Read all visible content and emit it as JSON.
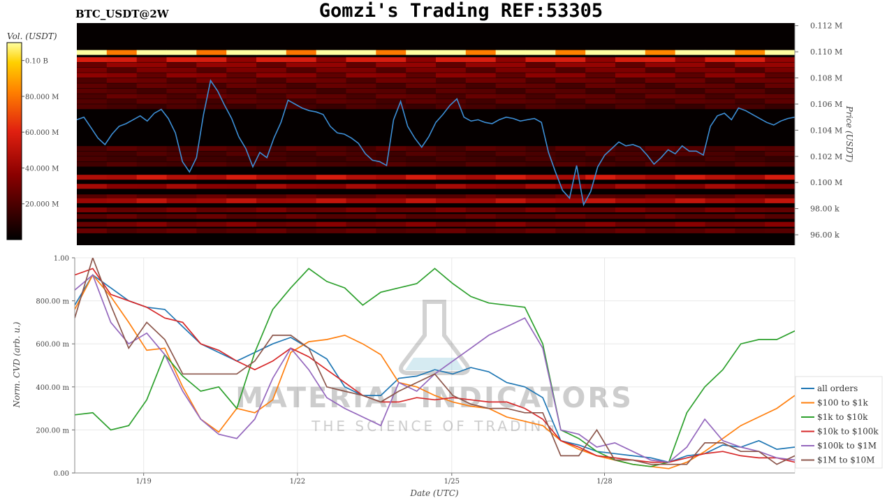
{
  "title": "Gomzi's Trading REF:53305",
  "symbol": "BTC_USDT@2W",
  "watermark": {
    "line1": "MATERIAL INDICATORS",
    "line2": "THE SCIENCE OF TRADING"
  },
  "heatmap": {
    "colorbar_label": "Vol. (USDT)",
    "colorbar_ticks": [
      "0.10 B",
      "80.000 M",
      "60.000 M",
      "40.000 M",
      "20.000 M"
    ],
    "colorbar_tick_values": [
      100000000,
      80000000,
      60000000,
      40000000,
      20000000
    ],
    "price_axis_label": "Price (USDT)",
    "price_ticks": [
      "0.112 M",
      "0.110 M",
      "0.108 M",
      "0.106 M",
      "0.104 M",
      "0.102 M",
      "0.100 M",
      "98.00 k",
      "96.00 k"
    ],
    "price_tick_values": [
      112000,
      110000,
      108000,
      106000,
      104000,
      102000,
      100000,
      98000,
      96000
    ],
    "price_range": [
      95200,
      112200
    ],
    "price_line_color": "#3d8fd6",
    "bands": [
      {
        "price": 109950,
        "intensity": 0.97
      },
      {
        "price": 109400,
        "intensity": 0.45
      },
      {
        "price": 109000,
        "intensity": 0.3
      },
      {
        "price": 108600,
        "intensity": 0.25
      },
      {
        "price": 108200,
        "intensity": 0.28
      },
      {
        "price": 107800,
        "intensity": 0.22
      },
      {
        "price": 107400,
        "intensity": 0.2
      },
      {
        "price": 107000,
        "intensity": 0.18
      },
      {
        "price": 106600,
        "intensity": 0.2
      },
      {
        "price": 106200,
        "intensity": 0.18
      },
      {
        "price": 105800,
        "intensity": 0.15
      },
      {
        "price": 102600,
        "intensity": 0.18
      },
      {
        "price": 102200,
        "intensity": 0.16
      },
      {
        "price": 101800,
        "intensity": 0.14
      },
      {
        "price": 101400,
        "intensity": 0.16
      },
      {
        "price": 100400,
        "intensity": 0.42
      },
      {
        "price": 99700,
        "intensity": 0.32
      },
      {
        "price": 98900,
        "intensity": 0.2
      },
      {
        "price": 98600,
        "intensity": 0.38
      },
      {
        "price": 97900,
        "intensity": 0.24
      },
      {
        "price": 97400,
        "intensity": 0.2
      },
      {
        "price": 96800,
        "intensity": 0.26
      },
      {
        "price": 96300,
        "intensity": 0.2
      }
    ],
    "price_series": [
      104800,
      105000,
      104200,
      103400,
      102900,
      103700,
      104300,
      104500,
      104800,
      105100,
      104700,
      105300,
      105600,
      104900,
      103800,
      101600,
      100800,
      101900,
      105200,
      107800,
      107000,
      105900,
      104900,
      103500,
      102600,
      101200,
      102300,
      101900,
      103400,
      104600,
      106300,
      106000,
      105700,
      105500,
      105400,
      105200,
      104300,
      103800,
      103700,
      103400,
      103000,
      102200,
      101700,
      101600,
      101300,
      104800,
      106200,
      104300,
      103400,
      102700,
      103500,
      104600,
      105200,
      105900,
      106400,
      105000,
      104700,
      104800,
      104600,
      104500,
      104800,
      105000,
      104900,
      104700,
      104800,
      104900,
      104600,
      102300,
      100800,
      99400,
      98800,
      101300,
      98300,
      99300,
      101200,
      102100,
      102600,
      103100,
      102800,
      102900,
      102700,
      102100,
      101400,
      101900,
      102500,
      102200,
      102800,
      102400,
      102400,
      102100,
      104300,
      105100,
      105300,
      104800,
      105700,
      105500,
      105200,
      104900,
      104600,
      104400,
      104700,
      104900,
      105000
    ]
  },
  "chart_data": {
    "type": "line",
    "title": "Gomzi's Trading REF:53305",
    "xlabel": "Date (UTC)",
    "ylabel": "Norm. CVD (arb. u.)",
    "x_ticks": [
      "1/19",
      "1/22",
      "1/25",
      "1/28"
    ],
    "x_tick_positions": [
      1.34,
      4.33,
      7.33,
      10.3
    ],
    "x_range": [
      0,
      14
    ],
    "ylim": [
      0,
      1
    ],
    "y_ticks": [
      "1.00",
      "800.00 m",
      "600.00 m",
      "400.00 m",
      "200.00 m",
      "0.00"
    ],
    "y_tick_values": [
      1,
      0.8,
      0.6,
      0.4,
      0.2,
      0
    ],
    "grid": true,
    "legend_placement": "right",
    "x": [
      0,
      0.35,
      0.7,
      1.05,
      1.4,
      1.75,
      2.1,
      2.45,
      2.8,
      3.15,
      3.5,
      3.85,
      4.2,
      4.55,
      4.9,
      5.25,
      5.6,
      5.95,
      6.3,
      6.65,
      7.0,
      7.35,
      7.7,
      8.05,
      8.4,
      8.75,
      9.1,
      9.45,
      9.8,
      10.15,
      10.5,
      10.85,
      11.2,
      11.55,
      11.9,
      12.25,
      12.6,
      12.95,
      13.3,
      13.65,
      14.0
    ],
    "series": [
      {
        "name": "all orders",
        "color": "#1f77b4",
        "values": [
          0.78,
          0.92,
          0.86,
          0.8,
          0.77,
          0.76,
          0.68,
          0.6,
          0.56,
          0.52,
          0.56,
          0.6,
          0.63,
          0.58,
          0.53,
          0.4,
          0.36,
          0.36,
          0.44,
          0.45,
          0.48,
          0.46,
          0.49,
          0.47,
          0.42,
          0.4,
          0.35,
          0.15,
          0.13,
          0.1,
          0.09,
          0.08,
          0.07,
          0.05,
          0.08,
          0.09,
          0.13,
          0.12,
          0.15,
          0.11,
          0.12
        ]
      },
      {
        "name": "$100 to $1k",
        "color": "#ff7f0e",
        "values": [
          0.76,
          0.92,
          0.82,
          0.7,
          0.57,
          0.58,
          0.4,
          0.25,
          0.19,
          0.3,
          0.28,
          0.34,
          0.56,
          0.61,
          0.62,
          0.64,
          0.6,
          0.55,
          0.42,
          0.4,
          0.36,
          0.33,
          0.31,
          0.3,
          0.26,
          0.24,
          0.22,
          0.15,
          0.11,
          0.08,
          0.06,
          0.04,
          0.03,
          0.02,
          0.05,
          0.1,
          0.16,
          0.22,
          0.26,
          0.3,
          0.36
        ]
      },
      {
        "name": "$1k to $10k",
        "color": "#2ca02c",
        "values": [
          0.27,
          0.28,
          0.2,
          0.22,
          0.34,
          0.55,
          0.45,
          0.38,
          0.4,
          0.3,
          0.56,
          0.76,
          0.86,
          0.95,
          0.89,
          0.86,
          0.78,
          0.84,
          0.86,
          0.88,
          0.95,
          0.88,
          0.82,
          0.79,
          0.78,
          0.77,
          0.6,
          0.2,
          0.16,
          0.1,
          0.06,
          0.04,
          0.03,
          0.05,
          0.28,
          0.4,
          0.48,
          0.6,
          0.62,
          0.62,
          0.66
        ]
      },
      {
        "name": "$10k to $100k",
        "color": "#d62728",
        "values": [
          0.92,
          0.95,
          0.83,
          0.8,
          0.77,
          0.72,
          0.7,
          0.6,
          0.57,
          0.52,
          0.48,
          0.52,
          0.58,
          0.54,
          0.48,
          0.42,
          0.36,
          0.33,
          0.33,
          0.35,
          0.34,
          0.35,
          0.34,
          0.33,
          0.33,
          0.3,
          0.25,
          0.15,
          0.12,
          0.08,
          0.07,
          0.06,
          0.05,
          0.05,
          0.07,
          0.09,
          0.1,
          0.08,
          0.07,
          0.07,
          0.05
        ]
      },
      {
        "name": "$100k to $1M",
        "color": "#9467bd",
        "values": [
          0.85,
          0.92,
          0.7,
          0.6,
          0.65,
          0.55,
          0.38,
          0.25,
          0.18,
          0.16,
          0.25,
          0.44,
          0.58,
          0.48,
          0.35,
          0.3,
          0.26,
          0.22,
          0.42,
          0.38,
          0.46,
          0.52,
          0.58,
          0.64,
          0.68,
          0.72,
          0.58,
          0.2,
          0.18,
          0.12,
          0.14,
          0.1,
          0.06,
          0.05,
          0.12,
          0.25,
          0.15,
          0.12,
          0.1,
          0.07,
          0.06
        ]
      },
      {
        "name": "$1M to $10M",
        "color": "#8c564b",
        "values": [
          0.72,
          1.0,
          0.78,
          0.58,
          0.7,
          0.62,
          0.46,
          0.46,
          0.46,
          0.46,
          0.52,
          0.64,
          0.64,
          0.58,
          0.4,
          0.38,
          0.36,
          0.33,
          0.38,
          0.42,
          0.46,
          0.36,
          0.32,
          0.3,
          0.3,
          0.28,
          0.28,
          0.08,
          0.08,
          0.2,
          0.06,
          0.06,
          0.04,
          0.04,
          0.04,
          0.14,
          0.14,
          0.1,
          0.1,
          0.04,
          0.08
        ]
      }
    ]
  }
}
